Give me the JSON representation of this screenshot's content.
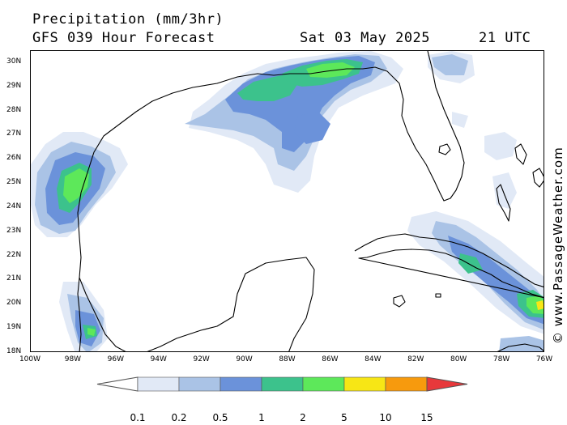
{
  "header": {
    "title": "Precipitation (mm/3hr)",
    "subtitle": "GFS 039 Hour Forecast",
    "date": "Sat 03 May 2025",
    "time": "21 UTC"
  },
  "credit": "© www.PassageWeather.com",
  "map": {
    "lat_labels": [
      "30N",
      "29N",
      "28N",
      "27N",
      "26N",
      "25N",
      "24N",
      "23N",
      "22N",
      "21N",
      "20N",
      "19N",
      "18N"
    ],
    "lon_labels": [
      "100W",
      "98W",
      "96W",
      "94W",
      "92W",
      "90W",
      "88W",
      "86W",
      "84W",
      "82W",
      "80W",
      "78W",
      "76W"
    ],
    "lat_range": [
      18,
      30.5
    ],
    "lon_range": [
      -100,
      -76
    ],
    "colors": {
      "land_outline": "#000000",
      "ocean": "#ffffff"
    }
  },
  "legend": {
    "labels": [
      "0.1",
      "0.2",
      "0.5",
      "1",
      "2",
      "5",
      "10",
      "15"
    ],
    "colors": [
      "#ffffff",
      "#e1e9f6",
      "#aac3e6",
      "#6b92da",
      "#3cc28c",
      "#5de85a",
      "#f7e615",
      "#f79a0d",
      "#e7383b"
    ]
  }
}
